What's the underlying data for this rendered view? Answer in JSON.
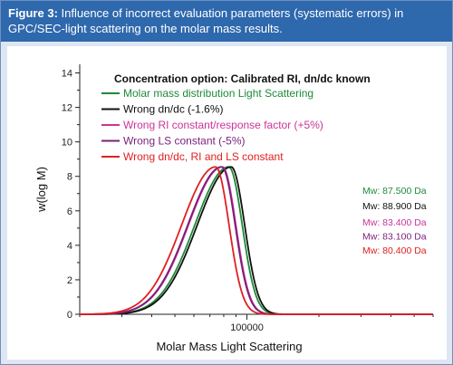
{
  "caption": {
    "figure_label": "Figure 3:",
    "text": " Influence of incorrect evaluation parameters (systematic errors) in GPC/SEC-light scattering on the molar mass results."
  },
  "chart_data": {
    "type": "line",
    "xlabel": "Molar Mass Light Scattering",
    "ylabel": "w(log M)",
    "x_scale": "log",
    "xlim": [
      20000,
      600000
    ],
    "ylim": [
      0,
      14.5
    ],
    "y_ticks": [
      0,
      2,
      4,
      6,
      8,
      10,
      12,
      14
    ],
    "x_tick_labels": [
      {
        "value": 100000,
        "label": "100000"
      }
    ],
    "grid": false,
    "legend_title": "Concentration option: Calibrated RI, dn/dc known",
    "legend_position": "top-left",
    "series": [
      {
        "name": "Molar mass distribution Light Scattering",
        "color": "#1e8a3a",
        "peak_x": 84000,
        "peak_y": 8.55,
        "left_width": 0.142,
        "right_width": 0.056,
        "mw_label": "Mw: 87.500 Da"
      },
      {
        "name": "Wrong dn/dc (-1.6%)",
        "color": "#111111",
        "peak_x": 86000,
        "peak_y": 8.55,
        "left_width": 0.142,
        "right_width": 0.056,
        "mw_label": "Mw: 88.900 Da"
      },
      {
        "name": "Wrong RI constant/response factor (+5%)",
        "color": "#cc3399",
        "peak_x": 79000,
        "peak_y": 8.55,
        "left_width": 0.142,
        "right_width": 0.056,
        "mw_label": "Mw: 83.400 Da"
      },
      {
        "name": "Wrong LS constant (-5%)",
        "color": "#7a1f7a",
        "peak_x": 78500,
        "peak_y": 8.55,
        "left_width": 0.142,
        "right_width": 0.056,
        "mw_label": "Mw: 83.100 Da"
      },
      {
        "name": "Wrong dn/dc, RI and LS constant",
        "color": "#e02020",
        "peak_x": 74000,
        "peak_y": 8.55,
        "left_width": 0.142,
        "right_width": 0.056,
        "mw_label": "Mw: 80.400 Da"
      }
    ]
  }
}
